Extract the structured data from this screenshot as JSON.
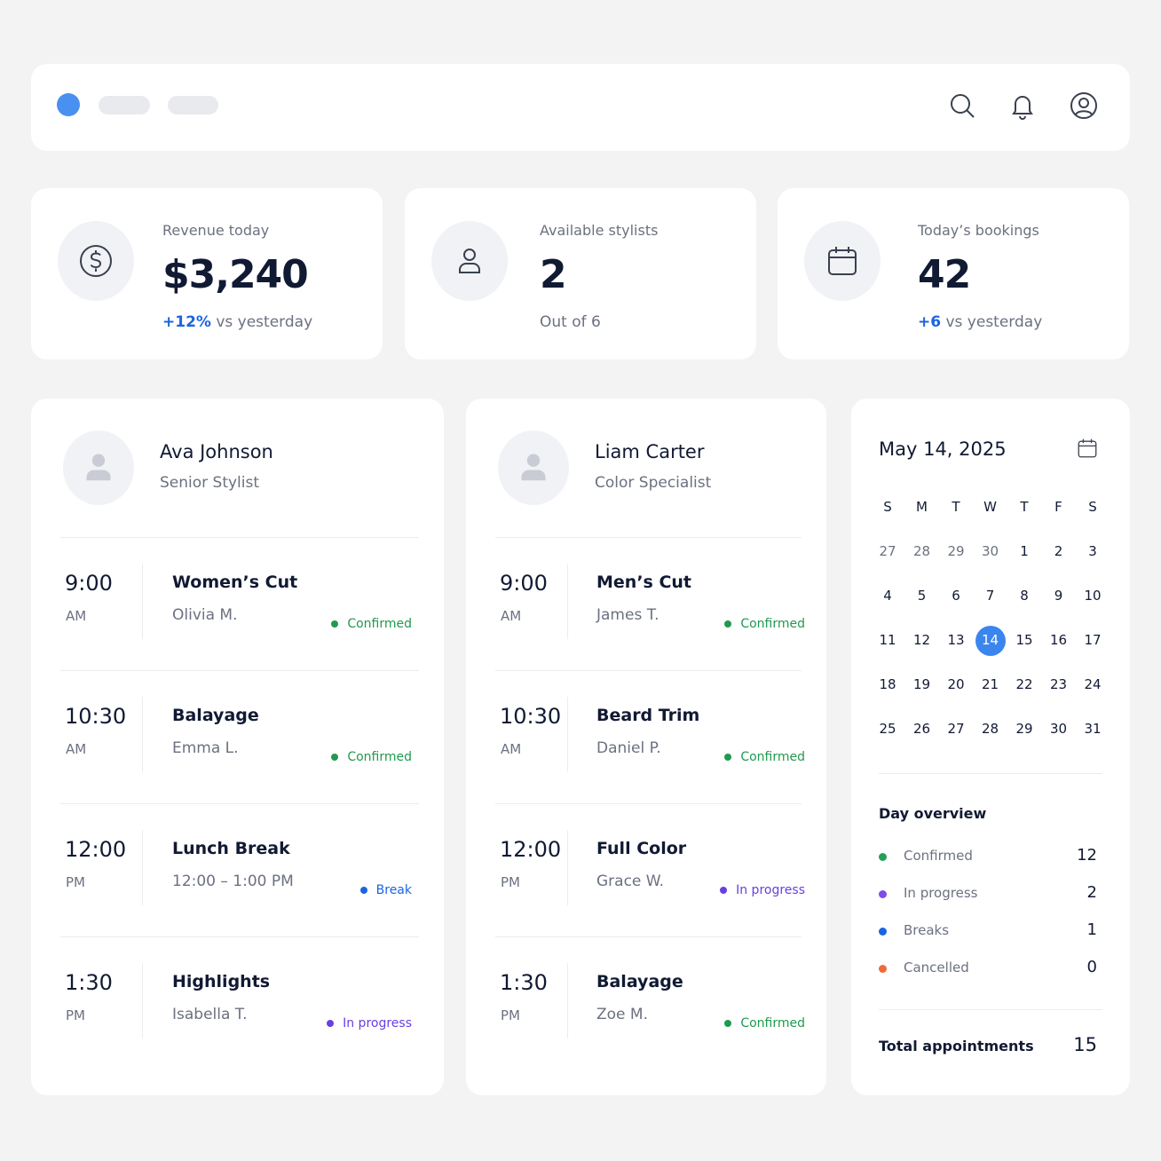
{
  "stats": [
    {
      "label": "Revenue today",
      "value": "$3,240",
      "delta": "+12%",
      "note": "vs yesterday"
    },
    {
      "label": "Available stylists",
      "value": "2",
      "note": "Out of 6"
    },
    {
      "label": "Today’s bookings",
      "value": "42",
      "delta": "+6",
      "note": "vs yesterday"
    }
  ],
  "status_colors": {
    "Confirmed": "#1f9a4e",
    "Break": "#1a66e0",
    "In progress": "#6a3fe0"
  },
  "stylists": [
    {
      "name": "Ava Johnson",
      "role": "Senior Stylist",
      "appointments": [
        {
          "time": "9:00",
          "period": "AM",
          "service": "Women’s Cut",
          "client": "Olivia M.",
          "status": "Confirmed"
        },
        {
          "time": "10:30",
          "period": "AM",
          "service": "Balayage",
          "client": "Emma L.",
          "status": "Confirmed"
        },
        {
          "time": "12:00",
          "period": "PM",
          "service": "Lunch Break",
          "client": "12:00 – 1:00 PM",
          "status": "Break"
        },
        {
          "time": "1:30",
          "period": "PM",
          "service": "Highlights",
          "client": "Isabella T.",
          "status": "In progress"
        }
      ]
    },
    {
      "name": "Liam Carter",
      "role": "Color Specialist",
      "appointments": [
        {
          "time": "9:00",
          "period": "AM",
          "service": "Men’s Cut",
          "client": "James T.",
          "status": "Confirmed"
        },
        {
          "time": "10:30",
          "period": "AM",
          "service": "Beard Trim",
          "client": "Daniel P.",
          "status": "Confirmed"
        },
        {
          "time": "12:00",
          "period": "PM",
          "service": "Full Color",
          "client": "Grace W.",
          "status": "In progress"
        },
        {
          "time": "1:30",
          "period": "PM",
          "service": "Balayage",
          "client": "Zoe M.",
          "status": "Confirmed"
        }
      ]
    }
  ],
  "calendar": {
    "title": "May 14, 2025",
    "weekdays": [
      "S",
      "M",
      "T",
      "W",
      "T",
      "F",
      "S"
    ],
    "prev_month_days": [
      27,
      28,
      29,
      30
    ],
    "days": [
      1,
      2,
      3,
      4,
      5,
      6,
      7,
      8,
      9,
      10,
      11,
      12,
      13,
      14,
      15,
      16,
      17,
      18,
      19,
      20,
      21,
      22,
      23,
      24,
      25,
      26,
      27,
      28,
      29,
      30,
      31
    ],
    "selected": 14
  },
  "overview": {
    "title": "Day overview",
    "items": [
      {
        "label": "Confirmed",
        "count": 12,
        "color": "#22a05a"
      },
      {
        "label": "In progress",
        "count": 2,
        "color": "#7c4dea"
      },
      {
        "label": "Breaks",
        "count": 1,
        "color": "#1a66e0"
      },
      {
        "label": "Cancelled",
        "count": 0,
        "color": "#f06a3c"
      }
    ],
    "total_label": "Total appointments",
    "total": 15
  }
}
